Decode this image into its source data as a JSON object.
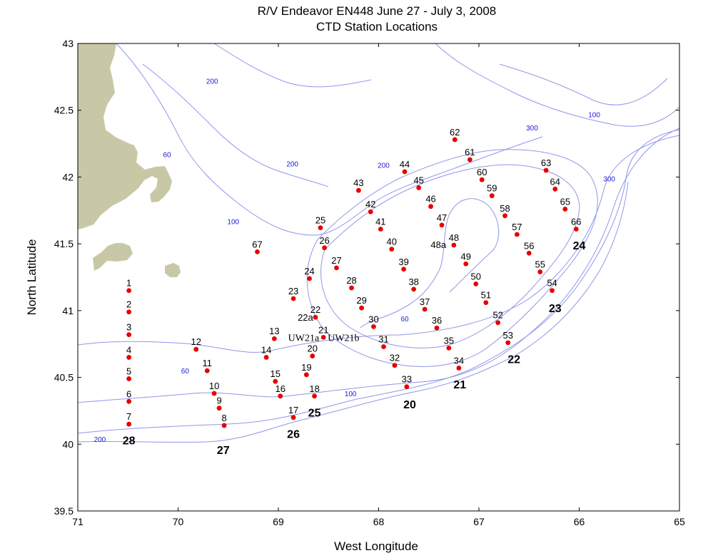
{
  "title_line1": "R/V Endeavor EN448  June 27 - July 3, 2008",
  "title_line2": "CTD Station Locations",
  "xlabel": "West Longitude",
  "ylabel": "North Latitude",
  "colors": {
    "station": "#e80000",
    "land": "#c9c8a6",
    "isobath": "#8f96ea",
    "contour_label": "#1a1ad6"
  },
  "chart_data": {
    "type": "scatter",
    "xlim": [
      71,
      65
    ],
    "ylim": [
      39.5,
      43
    ],
    "xticks": [
      "71",
      "70",
      "69",
      "68",
      "67",
      "66",
      "65"
    ],
    "yticks": [
      "39.5",
      "40",
      "40.5",
      "41",
      "41.5",
      "42",
      "42.5",
      "43"
    ],
    "grid": false,
    "stations": [
      {
        "name": "1",
        "lon": 70.49,
        "lat": 41.15
      },
      {
        "name": "2",
        "lon": 70.49,
        "lat": 40.99
      },
      {
        "name": "3",
        "lon": 70.49,
        "lat": 40.82
      },
      {
        "name": "4",
        "lon": 70.49,
        "lat": 40.65
      },
      {
        "name": "5",
        "lon": 70.49,
        "lat": 40.49
      },
      {
        "name": "6",
        "lon": 70.49,
        "lat": 40.32
      },
      {
        "name": "7",
        "lon": 70.49,
        "lat": 40.15
      },
      {
        "name": "8",
        "lon": 69.54,
        "lat": 40.14
      },
      {
        "name": "9",
        "lon": 69.59,
        "lat": 40.27
      },
      {
        "name": "10",
        "lon": 69.64,
        "lat": 40.38
      },
      {
        "name": "11",
        "lon": 69.71,
        "lat": 40.55
      },
      {
        "name": "12",
        "lon": 69.82,
        "lat": 40.71
      },
      {
        "name": "13",
        "lon": 69.04,
        "lat": 40.79
      },
      {
        "name": "14",
        "lon": 69.12,
        "lat": 40.65
      },
      {
        "name": "15",
        "lon": 69.03,
        "lat": 40.47
      },
      {
        "name": "16",
        "lon": 68.98,
        "lat": 40.36
      },
      {
        "name": "17",
        "lon": 68.85,
        "lat": 40.2
      },
      {
        "name": "18",
        "lon": 68.64,
        "lat": 40.36
      },
      {
        "name": "19",
        "lon": 68.72,
        "lat": 40.52
      },
      {
        "name": "20",
        "lon": 68.66,
        "lat": 40.66
      },
      {
        "name": "21",
        "lon": 68.55,
        "lat": 40.8
      },
      {
        "name": "22",
        "lon": 68.63,
        "lat": 40.95
      },
      {
        "name": "23",
        "lon": 68.85,
        "lat": 41.09
      },
      {
        "name": "24",
        "lon": 68.69,
        "lat": 41.24
      },
      {
        "name": "25",
        "lon": 68.58,
        "lat": 41.62
      },
      {
        "name": "26",
        "lon": 68.54,
        "lat": 41.47
      },
      {
        "name": "27",
        "lon": 68.42,
        "lat": 41.32
      },
      {
        "name": "28",
        "lon": 68.27,
        "lat": 41.17
      },
      {
        "name": "29",
        "lon": 68.17,
        "lat": 41.02
      },
      {
        "name": "30",
        "lon": 68.05,
        "lat": 40.88
      },
      {
        "name": "31",
        "lon": 67.95,
        "lat": 40.73
      },
      {
        "name": "32",
        "lon": 67.84,
        "lat": 40.59
      },
      {
        "name": "33",
        "lon": 67.72,
        "lat": 40.43
      },
      {
        "name": "34",
        "lon": 67.2,
        "lat": 40.57
      },
      {
        "name": "35",
        "lon": 67.3,
        "lat": 40.72
      },
      {
        "name": "36",
        "lon": 67.42,
        "lat": 40.87
      },
      {
        "name": "37",
        "lon": 67.54,
        "lat": 41.01
      },
      {
        "name": "38",
        "lon": 67.65,
        "lat": 41.16
      },
      {
        "name": "39",
        "lon": 67.75,
        "lat": 41.31
      },
      {
        "name": "40",
        "lon": 67.87,
        "lat": 41.46
      },
      {
        "name": "41",
        "lon": 67.98,
        "lat": 41.61
      },
      {
        "name": "42",
        "lon": 68.08,
        "lat": 41.74
      },
      {
        "name": "43",
        "lon": 68.2,
        "lat": 41.9
      },
      {
        "name": "44",
        "lon": 67.74,
        "lat": 42.04
      },
      {
        "name": "45",
        "lon": 67.6,
        "lat": 41.92
      },
      {
        "name": "46",
        "lon": 67.48,
        "lat": 41.78
      },
      {
        "name": "47",
        "lon": 67.37,
        "lat": 41.64
      },
      {
        "name": "48",
        "lon": 67.25,
        "lat": 41.49
      },
      {
        "name": "49",
        "lon": 67.13,
        "lat": 41.35
      },
      {
        "name": "50",
        "lon": 67.03,
        "lat": 41.2
      },
      {
        "name": "51",
        "lon": 66.93,
        "lat": 41.06
      },
      {
        "name": "52",
        "lon": 66.81,
        "lat": 40.91
      },
      {
        "name": "53",
        "lon": 66.71,
        "lat": 40.76
      },
      {
        "name": "54",
        "lon": 66.27,
        "lat": 41.15
      },
      {
        "name": "55",
        "lon": 66.39,
        "lat": 41.29
      },
      {
        "name": "56",
        "lon": 66.5,
        "lat": 41.43
      },
      {
        "name": "57",
        "lon": 66.62,
        "lat": 41.57
      },
      {
        "name": "58",
        "lon": 66.74,
        "lat": 41.71
      },
      {
        "name": "59",
        "lon": 66.87,
        "lat": 41.86
      },
      {
        "name": "60",
        "lon": 66.97,
        "lat": 41.98
      },
      {
        "name": "61",
        "lon": 67.09,
        "lat": 42.13
      },
      {
        "name": "62",
        "lon": 67.24,
        "lat": 42.28
      },
      {
        "name": "63",
        "lon": 66.33,
        "lat": 42.05
      },
      {
        "name": "64",
        "lon": 66.24,
        "lat": 41.91
      },
      {
        "name": "65",
        "lon": 66.14,
        "lat": 41.76
      },
      {
        "name": "66",
        "lon": 66.03,
        "lat": 41.61
      },
      {
        "name": "67",
        "lon": 69.21,
        "lat": 41.44
      },
      {
        "name": "48a",
        "lon": 67.27,
        "lat": 41.49
      },
      {
        "name": "22a",
        "lon": 68.61,
        "lat": 40.95
      },
      {
        "name": "UW21a",
        "lon": 68.55,
        "lat": 40.8
      },
      {
        "name": "UW21b",
        "lon": 68.55,
        "lat": 40.8
      }
    ],
    "transect_labels": [
      {
        "name": "28",
        "lon": 70.49,
        "lat": 40.03
      },
      {
        "name": "27",
        "lon": 69.55,
        "lat": 39.96
      },
      {
        "name": "26",
        "lon": 68.85,
        "lat": 40.08
      },
      {
        "name": "25",
        "lon": 68.64,
        "lat": 40.24
      },
      {
        "name": "20",
        "lon": 67.69,
        "lat": 40.3
      },
      {
        "name": "21",
        "lon": 67.19,
        "lat": 40.45
      },
      {
        "name": "22",
        "lon": 66.65,
        "lat": 40.64
      },
      {
        "name": "23",
        "lon": 66.24,
        "lat": 41.02
      },
      {
        "name": "24",
        "lon": 66.0,
        "lat": 41.49
      }
    ],
    "contour_labels": [
      {
        "name": "200",
        "lon": 69.66,
        "lat": 42.72
      },
      {
        "name": "60",
        "lon": 70.11,
        "lat": 42.17
      },
      {
        "name": "200",
        "lon": 68.86,
        "lat": 42.1
      },
      {
        "name": "200",
        "lon": 67.95,
        "lat": 42.09
      },
      {
        "name": "100",
        "lon": 69.45,
        "lat": 41.67
      },
      {
        "name": "300",
        "lon": 66.47,
        "lat": 42.37
      },
      {
        "name": "100",
        "lon": 65.85,
        "lat": 42.47
      },
      {
        "name": "300",
        "lon": 65.7,
        "lat": 41.99
      },
      {
        "name": "60",
        "lon": 67.74,
        "lat": 40.94
      },
      {
        "name": "60",
        "lon": 69.93,
        "lat": 40.55
      },
      {
        "name": "100",
        "lon": 68.28,
        "lat": 40.38
      },
      {
        "name": "200",
        "lon": 70.78,
        "lat": 40.04
      }
    ]
  }
}
